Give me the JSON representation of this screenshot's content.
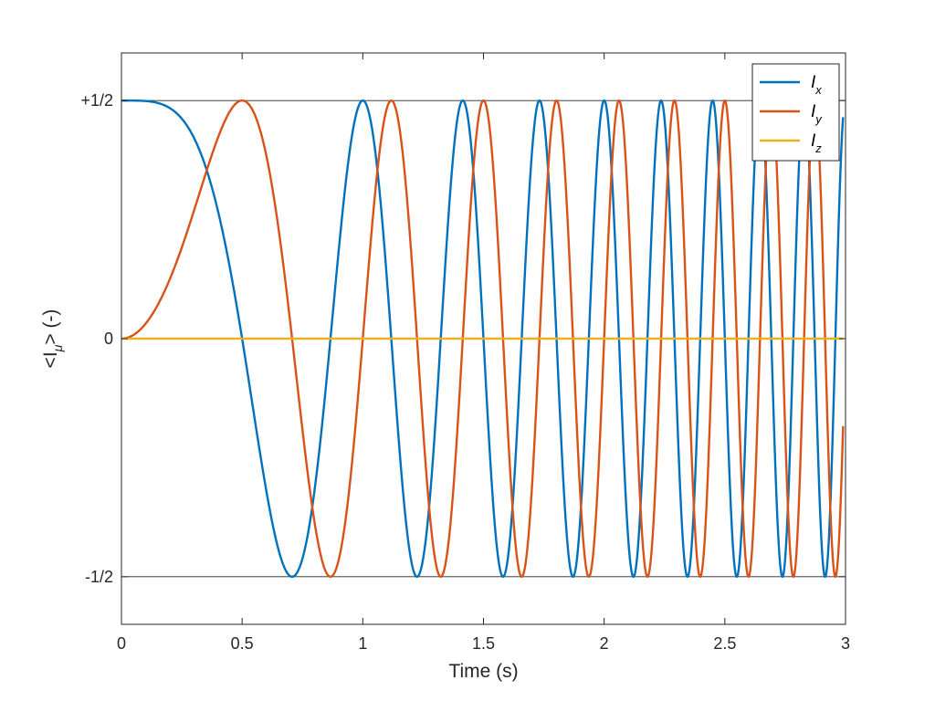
{
  "chart_data": {
    "type": "line",
    "title": "",
    "xlabel": "Time (s)",
    "ylabel": "<I",
    "ylabel_sub": "μ",
    "ylabel_suffix": "> (-)",
    "xlim": [
      0,
      3
    ],
    "ylim": [
      -0.6,
      0.6
    ],
    "xticks": [
      0,
      0.5,
      1,
      1.5,
      2,
      2.5,
      3
    ],
    "xtick_labels": [
      "0",
      "0.5",
      "1",
      "1.5",
      "2",
      "2.5",
      "3"
    ],
    "yticks": [
      -0.5,
      0,
      0.5
    ],
    "ytick_labels": [
      "-1/2",
      "0",
      "+1/2"
    ],
    "grid": "y-only",
    "legend_position": "top-right",
    "chirp": {
      "amplitude": 0.5,
      "phase_formula": "2*pi*t^2"
    },
    "series": [
      {
        "name": "I",
        "subscript": "x",
        "color": "#0072BD",
        "function": "0.5*cos(2*pi*t^2)",
        "x_start": 0,
        "x_end": 2.99
      },
      {
        "name": "I",
        "subscript": "y",
        "color": "#D95319",
        "function": "0.5*sin(2*pi*t^2)",
        "x_start": 0,
        "x_end": 2.99
      },
      {
        "name": "I",
        "subscript": "z",
        "color": "#EDB120",
        "function": "0",
        "x_start": 0,
        "x_end": 2.99
      }
    ]
  }
}
